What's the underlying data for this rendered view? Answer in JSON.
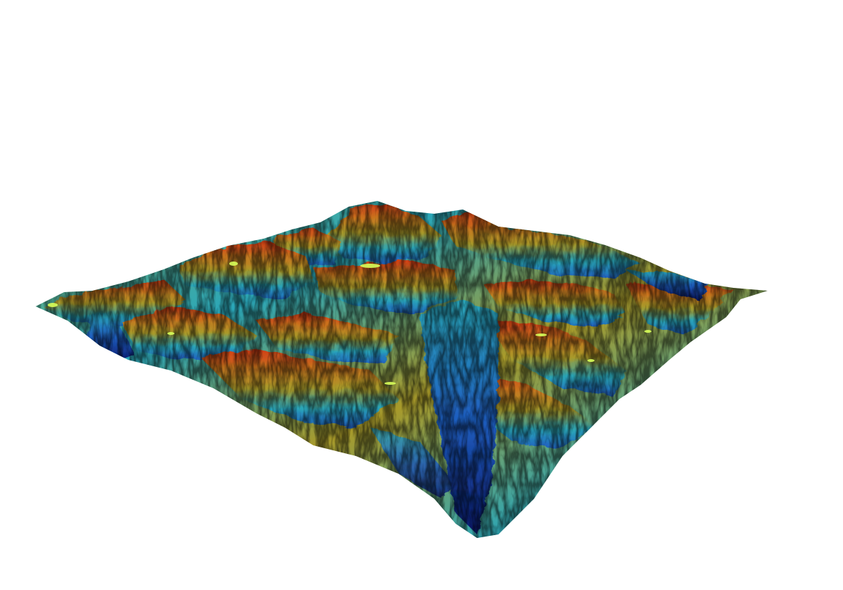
{
  "scene": {
    "background_color": "#ffffff",
    "subject": "3d-terrain-surface",
    "colormap": {
      "name": "elevation-ramp",
      "stops": [
        "#0a1a6e",
        "#1f5fc0",
        "#2aa6b8",
        "#6fb36a",
        "#a89a2a",
        "#c9761f",
        "#d23c17"
      ]
    },
    "highlight_color": "#d8ff5a"
  }
}
